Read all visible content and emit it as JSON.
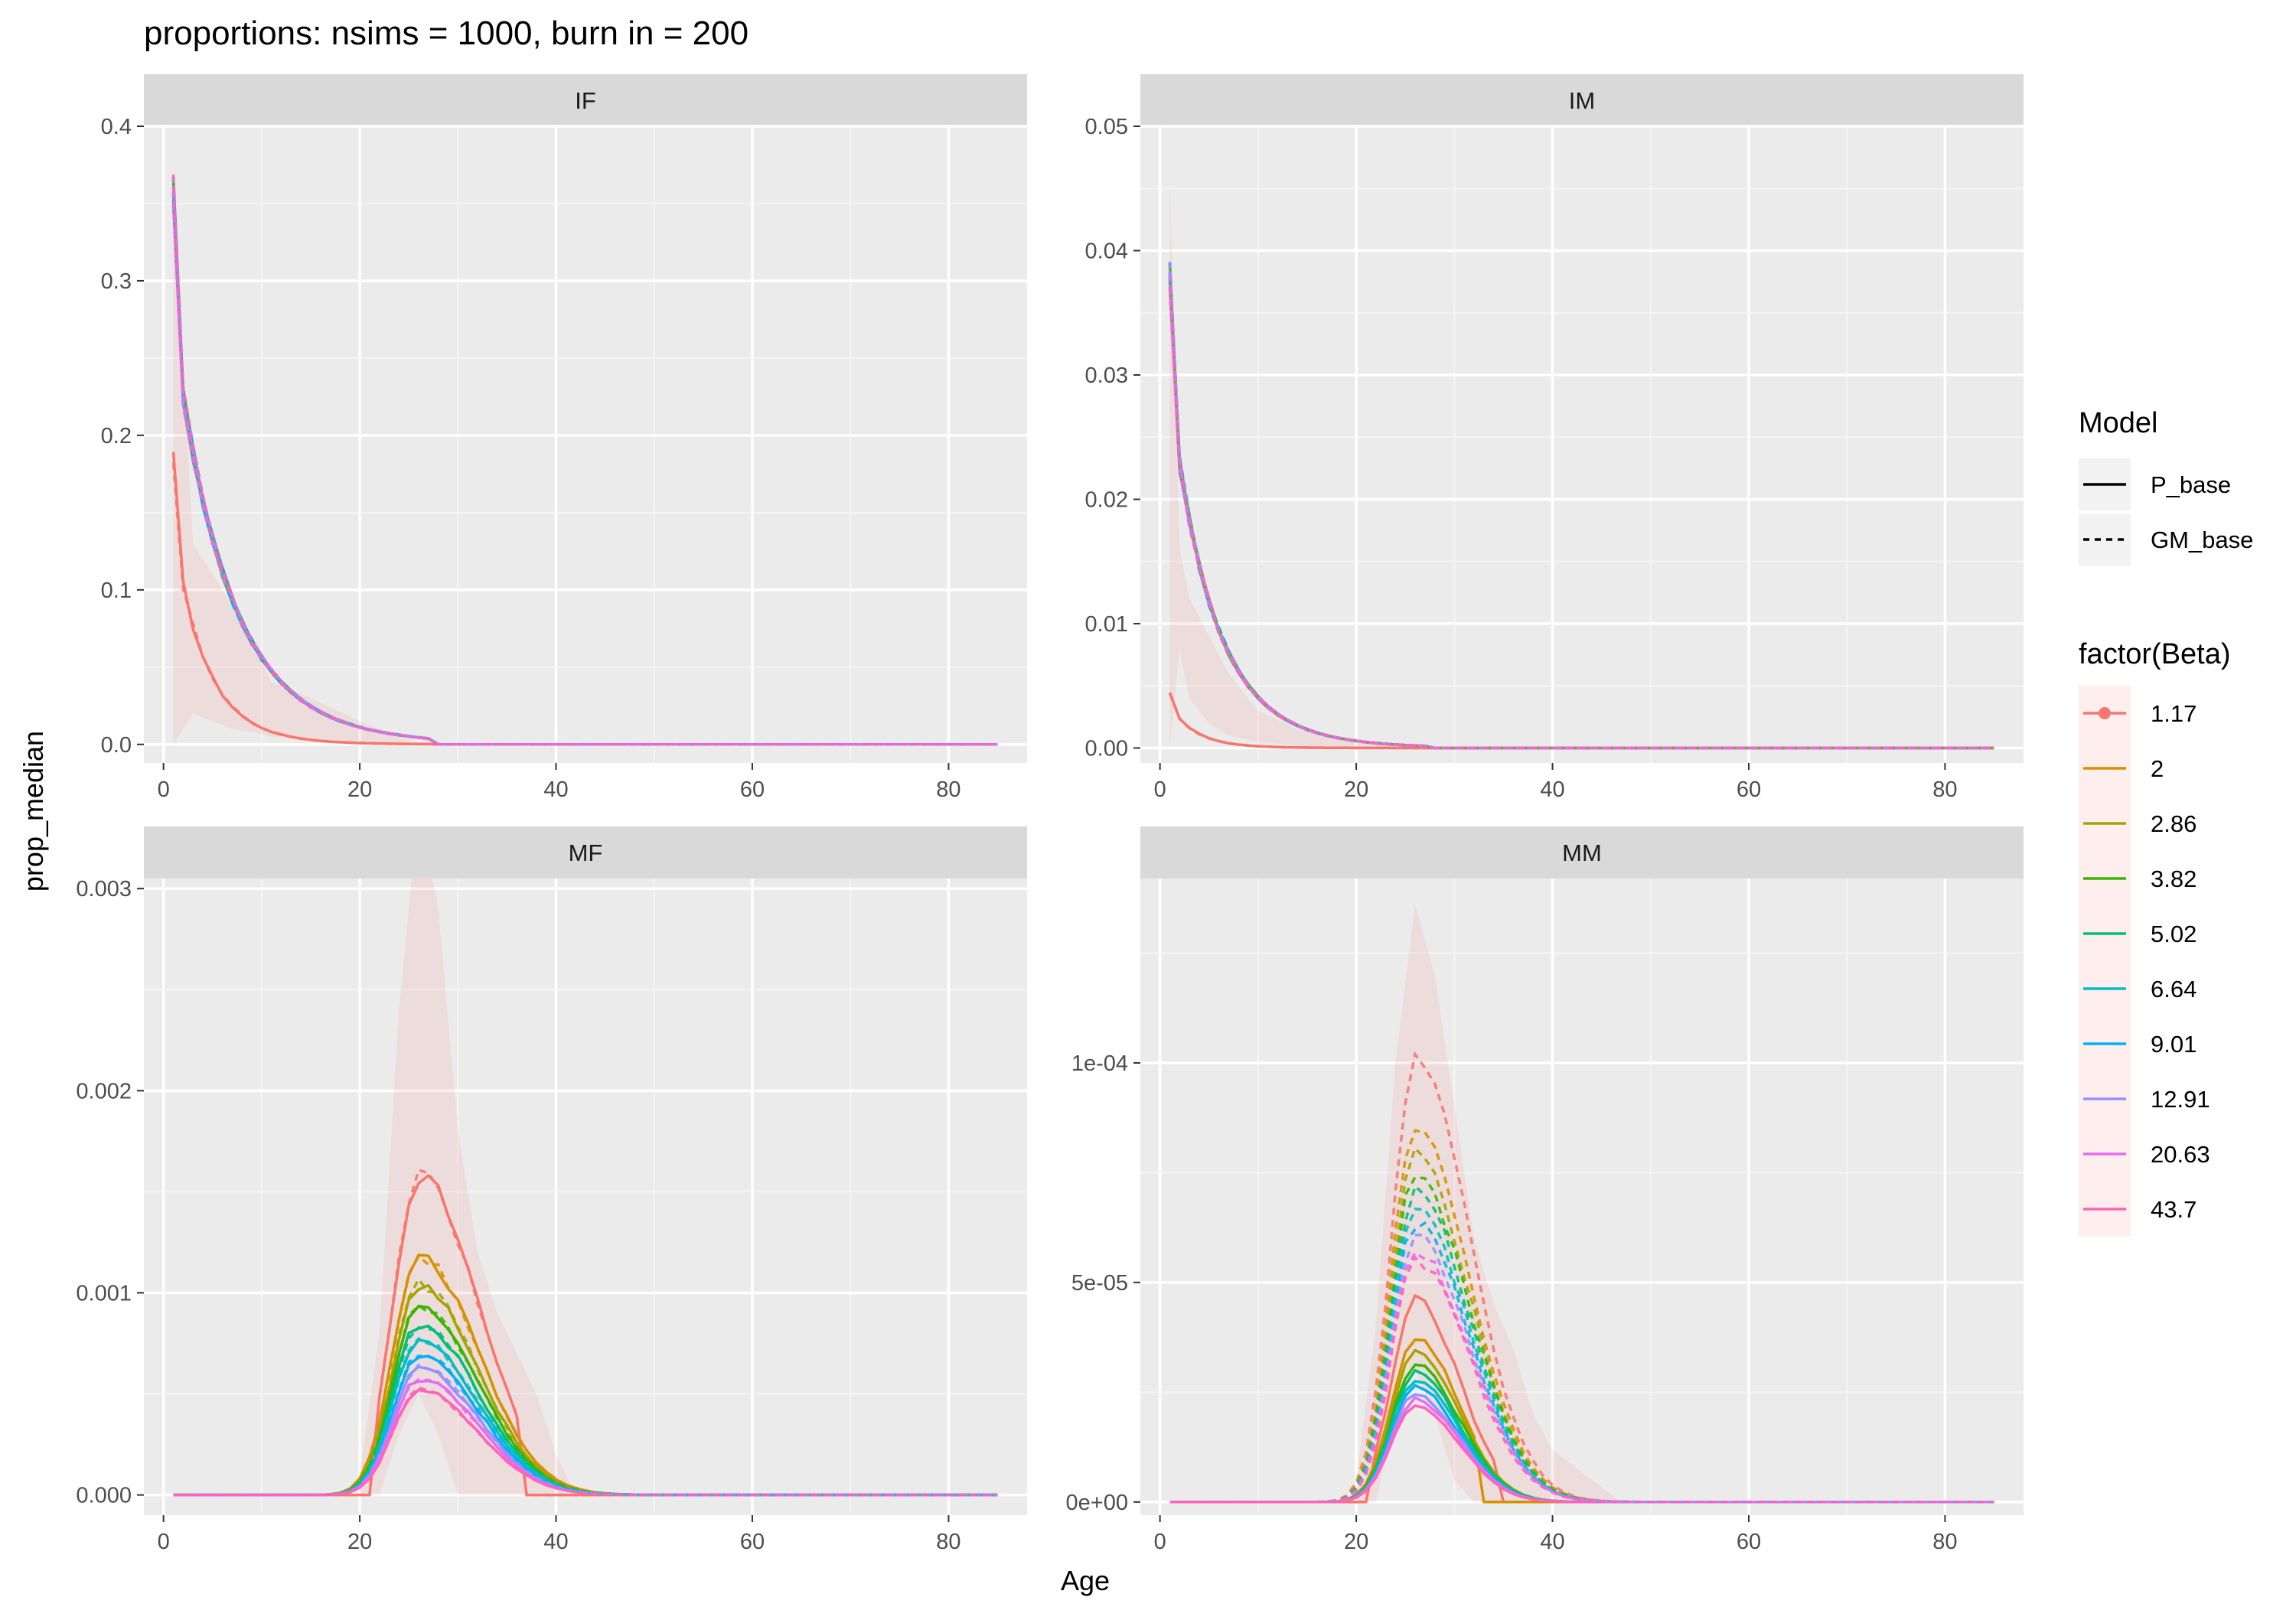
{
  "chart_data": {
    "type": "line",
    "title": "proportions: nsims = 1000, burn in = 200",
    "xlabel": "Age",
    "ylabel": "prop_median",
    "grid": true,
    "legend_position": "right",
    "legends": {
      "model": {
        "title": "Model",
        "entries": [
          {
            "label": "P_base",
            "linetype": "solid"
          },
          {
            "label": "GM_base",
            "linetype": "dashed"
          }
        ]
      },
      "beta": {
        "title": "factor(Beta)",
        "entries": [
          {
            "label": "1.17",
            "color": "#F8766D"
          },
          {
            "label": "2",
            "color": "#D89000"
          },
          {
            "label": "2.86",
            "color": "#A3A500"
          },
          {
            "label": "3.82",
            "color": "#39B600"
          },
          {
            "label": "5.02",
            "color": "#00BF7D"
          },
          {
            "label": "6.64",
            "color": "#00BFC4"
          },
          {
            "label": "9.01",
            "color": "#00B0F6"
          },
          {
            "label": "12.91",
            "color": "#9590FF"
          },
          {
            "label": "20.63",
            "color": "#E76BF3"
          },
          {
            "label": "43.7",
            "color": "#FF62BC"
          }
        ]
      }
    },
    "panels": [
      {
        "strip": "IF",
        "xlim": [
          -2,
          88
        ],
        "ylim": [
          -0.012,
          0.4
        ],
        "xticks": [
          0,
          20,
          40,
          60,
          80
        ],
        "xtick_labels": [
          "0",
          "20",
          "40",
          "60",
          "80"
        ],
        "yticks": [
          0,
          0.1,
          0.2,
          0.3,
          0.4
        ],
        "ytick_labels": [
          "0.0",
          "0.1",
          "0.2",
          "0.3",
          "0.4"
        ],
        "peak_age": 1,
        "amplitude": 0.36,
        "low": 0.185,
        "decay_tau": 5.0,
        "noise": "low",
        "band": {
          "x": [
            1,
            3,
            5,
            7,
            9,
            11,
            15,
            20,
            24,
            26
          ],
          "ylo": [
            0.0,
            0.02,
            0.015,
            0.01,
            0.008,
            0.005,
            0.003,
            0.001,
            0.0,
            0.0
          ],
          "yhi": [
            0.36,
            0.13,
            0.11,
            0.09,
            0.07,
            0.04,
            0.03,
            0.015,
            0.005,
            0.0
          ]
        }
      },
      {
        "strip": "IM",
        "xlim": [
          -2,
          88
        ],
        "ylim": [
          -0.0012,
          0.05
        ],
        "xticks": [
          0,
          20,
          40,
          60,
          80
        ],
        "xtick_labels": [
          "0",
          "20",
          "40",
          "60",
          "80"
        ],
        "yticks": [
          0,
          0.01,
          0.02,
          0.03,
          0.04,
          0.05
        ],
        "ytick_labels": [
          "0.00",
          "0.01",
          "0.02",
          "0.03",
          "0.04",
          "0.05"
        ],
        "peak_age": 1,
        "amplitude": 0.038,
        "low": 0.0045,
        "decay_tau": 4.0,
        "noise": "low",
        "band": {
          "x": [
            1,
            2,
            3,
            5,
            7,
            10,
            14,
            18,
            22,
            26
          ],
          "ylo": [
            0.0,
            0.008,
            0.004,
            0.002,
            0.001,
            0.0005,
            0.0002,
            0.0,
            0.0,
            0.0
          ],
          "yhi": [
            0.046,
            0.016,
            0.012,
            0.009,
            0.006,
            0.003,
            0.0015,
            0.0007,
            0.0003,
            0.0
          ]
        }
      },
      {
        "strip": "MF",
        "xlim": [
          -2,
          88
        ],
        "ylim": [
          -0.0001,
          0.00305
        ],
        "xticks": [
          0,
          20,
          40,
          60,
          80
        ],
        "xtick_labels": [
          "0",
          "20",
          "40",
          "60",
          "80"
        ],
        "yticks": [
          0,
          0.001,
          0.002,
          0.003
        ],
        "ytick_labels": [
          "0.000",
          "0.001",
          "0.002",
          "0.003"
        ],
        "peak_age": 26,
        "amplitude": 0.00158,
        "low": 0.00052,
        "sigma_left": 2.6,
        "sigma_right": 6.0,
        "cutoff": [
          22,
          36
        ],
        "band": {
          "x": [
            20,
            22,
            24,
            26,
            28,
            30,
            32,
            34,
            36,
            38,
            40,
            42
          ],
          "ylo": [
            0.0,
            0.0,
            0.0003,
            0.0005,
            0.0003,
            0.0,
            0.0,
            0.0,
            0.0,
            0.0,
            0.0,
            0.0
          ],
          "yhi": [
            0.0001,
            0.0008,
            0.0024,
            0.0034,
            0.0029,
            0.0018,
            0.0012,
            0.0009,
            0.0007,
            0.0005,
            0.0002,
            0.0
          ]
        }
      },
      {
        "strip": "MM",
        "xlim": [
          -2,
          88
        ],
        "ylim": [
          -3e-06,
          0.000142
        ],
        "xticks": [
          0,
          20,
          40,
          60,
          80
        ],
        "xtick_labels": [
          "0",
          "20",
          "40",
          "60",
          "80"
        ],
        "yticks": [
          0,
          5e-05,
          0.0001
        ],
        "ytick_labels": [
          "0e+00",
          "5e-05",
          "1e-04"
        ],
        "peak_age": 26,
        "amplitude": 4.6e-05,
        "low": 2.2e-05,
        "sigma_left": 2.4,
        "sigma_right": 4.5,
        "cutoff": [
          22,
          34
        ],
        "dashed_peak": 0.000101,
        "dashed_low": 5.5e-05,
        "dashed_sigma_right": 5.5,
        "band": {
          "x": [
            20,
            22,
            24,
            26,
            28,
            30,
            32,
            34,
            36,
            38,
            40,
            44,
            47
          ],
          "ylo": [
            0.0,
            0.0,
            2e-05,
            3e-05,
            2e-05,
            5e-06,
            0.0,
            0.0,
            0.0,
            0.0,
            0.0,
            0.0,
            0.0
          ],
          "yhi": [
            5e-06,
            4e-05,
            0.0001,
            0.000136,
            0.00012,
            9e-05,
            6e-05,
            4.5e-05,
            3.5e-05,
            2e-05,
            1.2e-05,
            5e-06,
            0.0
          ]
        }
      }
    ]
  }
}
